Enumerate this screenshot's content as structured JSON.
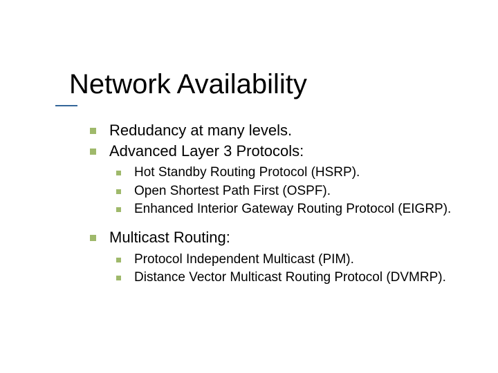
{
  "colors": {
    "accent": "#336699",
    "bullet": "#9fb96b",
    "text": "#000000",
    "background": "#ffffff"
  },
  "typography": {
    "title_fontsize": 40,
    "body_fontsize": 22,
    "sub_fontsize": 19,
    "font_family": "Verdana"
  },
  "title": "Network Availability",
  "items": [
    {
      "text": "Redudancy at many levels."
    },
    {
      "text": "Advanced Layer 3 Protocols:",
      "sub": [
        "Hot Standby Routing Protocol (HSRP).",
        "Open Shortest Path First (OSPF).",
        "Enhanced Interior Gateway Routing Protocol (EIGRP)."
      ]
    },
    {
      "text": "Multicast Routing:",
      "sub": [
        "Protocol Independent Multicast (PIM).",
        "Distance Vector Multicast Routing Protocol (DVMRP)."
      ]
    }
  ]
}
